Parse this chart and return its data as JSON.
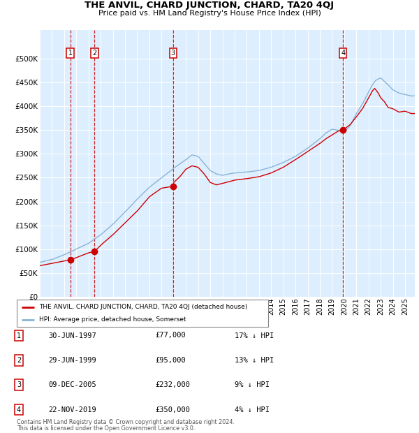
{
  "title": "THE ANVIL, CHARD JUNCTION, CHARD, TA20 4QJ",
  "subtitle": "Price paid vs. HM Land Registry's House Price Index (HPI)",
  "legend_property": "THE ANVIL, CHARD JUNCTION, CHARD, TA20 4QJ (detached house)",
  "legend_hpi": "HPI: Average price, detached house, Somerset",
  "footer1": "Contains HM Land Registry data © Crown copyright and database right 2024.",
  "footer2": "This data is licensed under the Open Government Licence v3.0.",
  "transactions": [
    {
      "num": 1,
      "price": 77000,
      "x_year": 1997.5
    },
    {
      "num": 2,
      "price": 95000,
      "x_year": 1999.5
    },
    {
      "num": 3,
      "price": 232000,
      "x_year": 2005.94
    },
    {
      "num": 4,
      "price": 350000,
      "x_year": 2019.9
    }
  ],
  "table_rows": [
    {
      "num": 1,
      "date_str": "30-JUN-1997",
      "price_str": "£77,000",
      "pct_str": "17% ↓ HPI"
    },
    {
      "num": 2,
      "date_str": "29-JUN-1999",
      "price_str": "£95,000",
      "pct_str": "13% ↓ HPI"
    },
    {
      "num": 3,
      "date_str": "09-DEC-2005",
      "price_str": "£232,000",
      "pct_str": "9% ↓ HPI"
    },
    {
      "num": 4,
      "date_str": "22-NOV-2019",
      "price_str": "£350,000",
      "pct_str": "4% ↓ HPI"
    }
  ],
  "color_property": "#cc0000",
  "color_hpi": "#8ab4d4",
  "color_dashed": "#cc0000",
  "plot_bg": "#ddeeff",
  "ylim": [
    0,
    560000
  ],
  "yticks": [
    0,
    50000,
    100000,
    150000,
    200000,
    250000,
    300000,
    350000,
    400000,
    450000,
    500000
  ],
  "xlim_start": 1995.0,
  "xlim_end": 2025.8,
  "xticks": [
    1995,
    1996,
    1997,
    1998,
    1999,
    2000,
    2001,
    2002,
    2003,
    2004,
    2005,
    2006,
    2007,
    2008,
    2009,
    2010,
    2011,
    2012,
    2013,
    2014,
    2015,
    2016,
    2017,
    2018,
    2019,
    2020,
    2021,
    2022,
    2023,
    2024,
    2025
  ],
  "hpi_knots_x": [
    1995,
    1996,
    1997,
    1998,
    1999,
    2000,
    2001,
    2002,
    2003,
    2004,
    2005,
    2006,
    2007,
    2007.5,
    2008,
    2008.5,
    2009,
    2009.5,
    2010,
    2010.5,
    2011,
    2012,
    2013,
    2014,
    2015,
    2016,
    2017,
    2018,
    2018.5,
    2019,
    2019.5,
    2020,
    2020.5,
    2021,
    2021.5,
    2022,
    2022.3,
    2022.6,
    2023,
    2023.5,
    2024,
    2024.5,
    2025,
    2025.5
  ],
  "hpi_knots_y": [
    72000,
    78000,
    88000,
    100000,
    112000,
    130000,
    152000,
    178000,
    205000,
    230000,
    250000,
    270000,
    288000,
    298000,
    295000,
    280000,
    265000,
    258000,
    255000,
    258000,
    260000,
    262000,
    265000,
    272000,
    282000,
    295000,
    312000,
    332000,
    344000,
    352000,
    350000,
    345000,
    360000,
    385000,
    405000,
    430000,
    445000,
    455000,
    460000,
    448000,
    435000,
    428000,
    425000,
    422000
  ],
  "prop_knots_x": [
    1995,
    1996,
    1997,
    1997.5,
    1998,
    1999,
    1999.5,
    2000,
    2001,
    2002,
    2003,
    2004,
    2005,
    2005.94,
    2006,
    2006.5,
    2007,
    2007.5,
    2008,
    2008.5,
    2009,
    2009.5,
    2010,
    2011,
    2012,
    2013,
    2014,
    2015,
    2016,
    2017,
    2018,
    2018.5,
    2019,
    2019.5,
    2019.9,
    2020,
    2020.5,
    2021,
    2021.5,
    2022,
    2022.3,
    2022.5,
    2022.8,
    2023,
    2023.3,
    2023.6,
    2024,
    2024.5,
    2025,
    2025.5
  ],
  "prop_knots_y": [
    65000,
    70000,
    75000,
    77000,
    82000,
    92000,
    95000,
    108000,
    130000,
    155000,
    180000,
    210000,
    228000,
    232000,
    240000,
    252000,
    268000,
    275000,
    272000,
    258000,
    240000,
    235000,
    238000,
    245000,
    248000,
    252000,
    260000,
    272000,
    288000,
    305000,
    322000,
    332000,
    340000,
    348000,
    350000,
    352000,
    362000,
    378000,
    395000,
    418000,
    432000,
    438000,
    428000,
    418000,
    410000,
    398000,
    395000,
    388000,
    390000,
    385000
  ]
}
